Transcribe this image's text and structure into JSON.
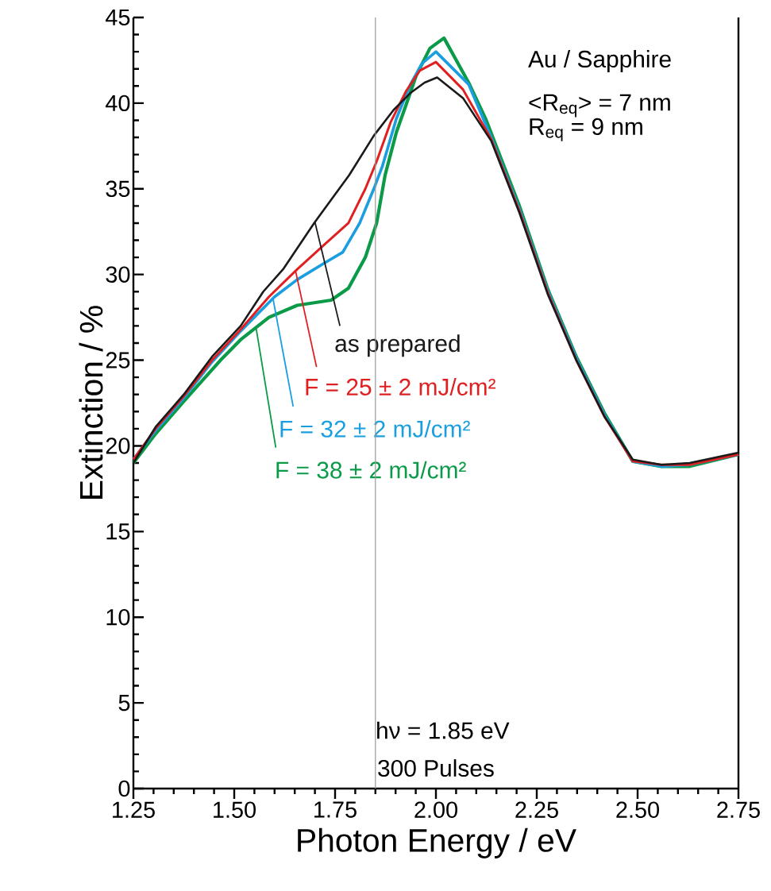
{
  "chart_data": {
    "type": "line",
    "xlabel": "Photon Energy / eV",
    "ylabel": "Extinction / %",
    "xlim": [
      1.25,
      2.75
    ],
    "ylim": [
      0,
      45
    ],
    "xticks": [
      {
        "value": 1.25,
        "label": "1.25"
      },
      {
        "value": 1.5,
        "label": "1.50"
      },
      {
        "value": 1.75,
        "label": "1.75"
      },
      {
        "value": 2.0,
        "label": "2.00"
      },
      {
        "value": 2.25,
        "label": "2.25"
      },
      {
        "value": 2.5,
        "label": "2.50"
      },
      {
        "value": 2.75,
        "label": "2.75"
      },
      {
        "value": 1.3,
        "label": null
      },
      {
        "value": 1.35,
        "label": null
      },
      {
        "value": 1.4,
        "label": null
      },
      {
        "value": 1.45,
        "label": null
      },
      {
        "value": 1.55,
        "label": null
      },
      {
        "value": 1.6,
        "label": null
      },
      {
        "value": 1.65,
        "label": null
      },
      {
        "value": 1.7,
        "label": null
      },
      {
        "value": 1.8,
        "label": null
      },
      {
        "value": 1.85,
        "label": null
      },
      {
        "value": 1.9,
        "label": null
      },
      {
        "value": 1.95,
        "label": null
      },
      {
        "value": 2.05,
        "label": null
      },
      {
        "value": 2.1,
        "label": null
      },
      {
        "value": 2.15,
        "label": null
      },
      {
        "value": 2.2,
        "label": null
      },
      {
        "value": 2.3,
        "label": null
      },
      {
        "value": 2.35,
        "label": null
      },
      {
        "value": 2.4,
        "label": null
      },
      {
        "value": 2.45,
        "label": null
      },
      {
        "value": 2.55,
        "label": null
      },
      {
        "value": 2.6,
        "label": null
      },
      {
        "value": 2.65,
        "label": null
      },
      {
        "value": 2.7,
        "label": null
      }
    ],
    "yticks": [
      0,
      5,
      10,
      15,
      20,
      25,
      30,
      35,
      40,
      45,
      {
        "value": 1,
        "label": null
      },
      {
        "value": 2,
        "label": null
      },
      {
        "value": 3,
        "label": null
      },
      {
        "value": 4,
        "label": null
      },
      {
        "value": 6,
        "label": null
      },
      {
        "value": 7,
        "label": null
      },
      {
        "value": 8,
        "label": null
      },
      {
        "value": 9,
        "label": null
      },
      {
        "value": 11,
        "label": null
      },
      {
        "value": 12,
        "label": null
      },
      {
        "value": 13,
        "label": null
      },
      {
        "value": 14,
        "label": null
      },
      {
        "value": 16,
        "label": null
      },
      {
        "value": 17,
        "label": null
      },
      {
        "value": 18,
        "label": null
      },
      {
        "value": 19,
        "label": null
      },
      {
        "value": 21,
        "label": null
      },
      {
        "value": 22,
        "label": null
      },
      {
        "value": 23,
        "label": null
      },
      {
        "value": 24,
        "label": null
      },
      {
        "value": 26,
        "label": null
      },
      {
        "value": 27,
        "label": null
      },
      {
        "value": 28,
        "label": null
      },
      {
        "value": 29,
        "label": null
      },
      {
        "value": 31,
        "label": null
      },
      {
        "value": 32,
        "label": null
      },
      {
        "value": 33,
        "label": null
      },
      {
        "value": 34,
        "label": null
      },
      {
        "value": 36,
        "label": null
      },
      {
        "value": 37,
        "label": null
      },
      {
        "value": 38,
        "label": null
      },
      {
        "value": 39,
        "label": null
      },
      {
        "value": 41,
        "label": null
      },
      {
        "value": 42,
        "label": null
      },
      {
        "value": 43,
        "label": null
      },
      {
        "value": 44,
        "label": null
      }
    ],
    "series": [
      {
        "name": "as prepared",
        "color": "#1a1a1a",
        "x": [
          1.25,
          1.305,
          1.375,
          1.445,
          1.516,
          1.572,
          1.621,
          1.698,
          1.785,
          1.846,
          1.895,
          1.937,
          1.972,
          2.003,
          2.067,
          2.137,
          2.207,
          2.278,
          2.348,
          2.418,
          2.488,
          2.559,
          2.629,
          2.75
        ],
        "values": [
          19.0,
          21.1,
          23.0,
          25.2,
          27.0,
          29.0,
          30.3,
          33.0,
          35.8,
          38.1,
          39.6,
          40.6,
          41.2,
          41.5,
          40.3,
          37.8,
          33.6,
          28.8,
          25.0,
          21.7,
          19.2,
          18.9,
          19.0,
          19.6
        ]
      },
      {
        "name": "F = 25 ± 2 mJ/cm²",
        "color": "#e02020",
        "x": [
          1.25,
          1.305,
          1.375,
          1.445,
          1.516,
          1.586,
          1.656,
          1.726,
          1.783,
          1.825,
          1.853,
          1.888,
          1.926,
          1.96,
          2.0,
          2.067,
          2.137,
          2.207,
          2.278,
          2.348,
          2.418,
          2.488,
          2.559,
          2.629,
          2.75
        ],
        "values": [
          19.2,
          21.0,
          22.9,
          25.0,
          26.8,
          28.7,
          30.3,
          31.8,
          33.0,
          35.0,
          36.6,
          38.9,
          40.7,
          41.9,
          42.4,
          40.8,
          37.9,
          33.7,
          28.9,
          25.0,
          21.7,
          19.1,
          18.9,
          18.9,
          19.5
        ]
      },
      {
        "name": "F = 32 ± 2 mJ/cm²",
        "color": "#1a9ee0",
        "x": [
          1.25,
          1.305,
          1.375,
          1.445,
          1.516,
          1.6,
          1.656,
          1.726,
          1.769,
          1.811,
          1.846,
          1.867,
          1.902,
          1.937,
          1.965,
          2.0,
          2.081,
          2.137,
          2.207,
          2.278,
          2.348,
          2.418,
          2.488,
          2.559,
          2.629,
          2.75
        ],
        "values": [
          19.2,
          20.9,
          22.8,
          24.9,
          26.7,
          28.7,
          29.7,
          30.7,
          31.3,
          33.0,
          35.0,
          36.3,
          39.1,
          41.1,
          42.3,
          43.0,
          41.1,
          38.0,
          33.8,
          29.0,
          25.1,
          21.8,
          19.1,
          18.8,
          18.9,
          19.5
        ]
      },
      {
        "name": "F = 38 ± 2 mJ/cm²",
        "color": "#0a9a48",
        "x": [
          1.25,
          1.305,
          1.375,
          1.466,
          1.516,
          1.586,
          1.656,
          1.74,
          1.783,
          1.825,
          1.853,
          1.874,
          1.902,
          1.926,
          1.951,
          1.985,
          2.02,
          2.081,
          2.123,
          2.207,
          2.278,
          2.348,
          2.418,
          2.488,
          2.559,
          2.629,
          2.75
        ],
        "values": [
          19.0,
          20.7,
          22.6,
          25.0,
          26.2,
          27.5,
          28.2,
          28.5,
          29.2,
          31.0,
          33.0,
          35.8,
          38.3,
          39.9,
          41.6,
          43.2,
          43.8,
          41.2,
          39.1,
          34.0,
          29.1,
          25.2,
          21.9,
          19.1,
          18.8,
          18.8,
          19.5
        ]
      }
    ],
    "ref_lines": [
      {
        "axis": "x",
        "value": 1.85,
        "label": "hν = 1.85 eV",
        "color": "#999999"
      }
    ],
    "annotations": [
      "Au / Sapphire",
      "<R$_{eq}$> = 7 nm",
      "R$_{eq}$ = 9 nm",
      "300 Pulses"
    ]
  }
}
